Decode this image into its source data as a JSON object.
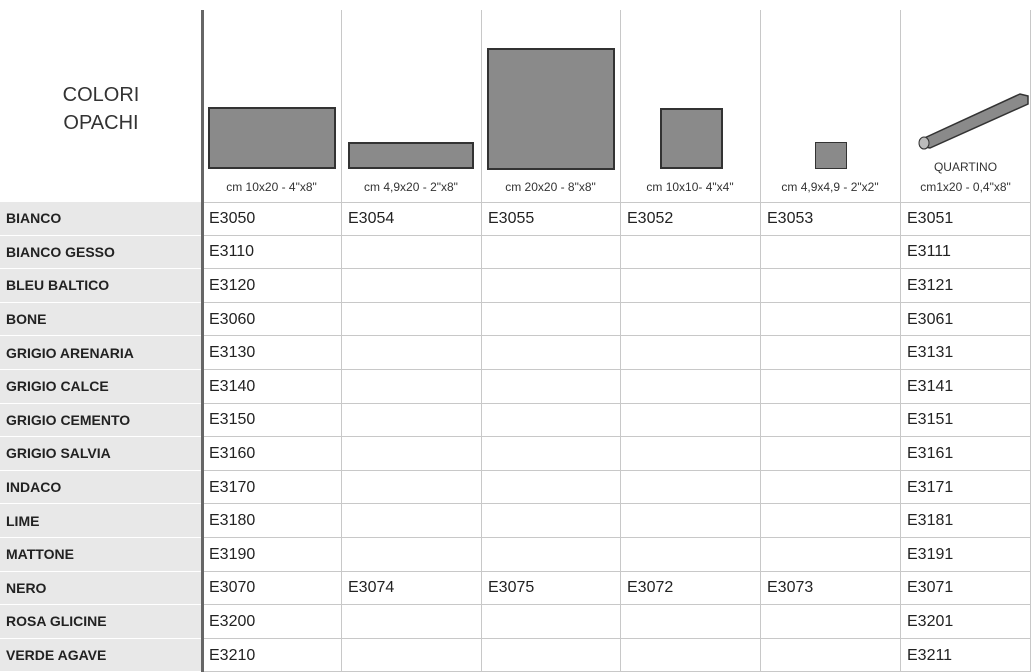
{
  "header": {
    "title_lines": [
      "COLORI",
      "OPACHI"
    ],
    "columns": [
      {
        "size": "cm 10x20 - 4\"x8\""
      },
      {
        "size": "cm 4,9x20 - 2\"x8\""
      },
      {
        "size": "cm 20x20 - 8\"x8\""
      },
      {
        "size": "cm 10x10- 4\"x4\""
      },
      {
        "size": "cm 4,9x4,9 - 2\"x2\""
      },
      {
        "name": "QUARTINO",
        "size": "cm1x20 - 0,4\"x8\""
      }
    ]
  },
  "table": {
    "rows": [
      {
        "name": "BIANCO",
        "codes": [
          "E3050",
          "E3054",
          "E3055",
          "E3052",
          "E3053",
          "E3051"
        ]
      },
      {
        "name": "BIANCO GESSO",
        "codes": [
          "E3110",
          null,
          null,
          null,
          null,
          "E3111"
        ]
      },
      {
        "name": "BLEU BALTICO",
        "codes": [
          "E3120",
          null,
          null,
          null,
          null,
          "E3121"
        ]
      },
      {
        "name": "BONE",
        "codes": [
          "E3060",
          null,
          null,
          null,
          null,
          "E3061"
        ]
      },
      {
        "name": "GRIGIO ARENARIA",
        "codes": [
          "E3130",
          null,
          null,
          null,
          null,
          "E3131"
        ]
      },
      {
        "name": "GRIGIO CALCE",
        "codes": [
          "E3140",
          null,
          null,
          null,
          null,
          "E3141"
        ]
      },
      {
        "name": "GRIGIO CEMENTO",
        "codes": [
          "E3150",
          null,
          null,
          null,
          null,
          "E3151"
        ]
      },
      {
        "name": "GRIGIO SALVIA",
        "codes": [
          "E3160",
          null,
          null,
          null,
          null,
          "E3161"
        ]
      },
      {
        "name": "INDACO",
        "codes": [
          "E3170",
          null,
          null,
          null,
          null,
          "E3171"
        ]
      },
      {
        "name": "LIME",
        "codes": [
          "E3180",
          null,
          null,
          null,
          null,
          "E3181"
        ]
      },
      {
        "name": "MATTONE",
        "codes": [
          "E3190",
          null,
          null,
          null,
          null,
          "E3191"
        ]
      },
      {
        "name": "NERO",
        "codes": [
          "E3070",
          "E3074",
          "E3075",
          "E3072",
          "E3073",
          "E3071"
        ]
      },
      {
        "name": "ROSA GLICINE",
        "codes": [
          "E3200",
          null,
          null,
          null,
          null,
          "E3201"
        ]
      },
      {
        "name": "VERDE AGAVE",
        "codes": [
          "E3210",
          null,
          null,
          null,
          null,
          "E3211"
        ]
      }
    ]
  }
}
